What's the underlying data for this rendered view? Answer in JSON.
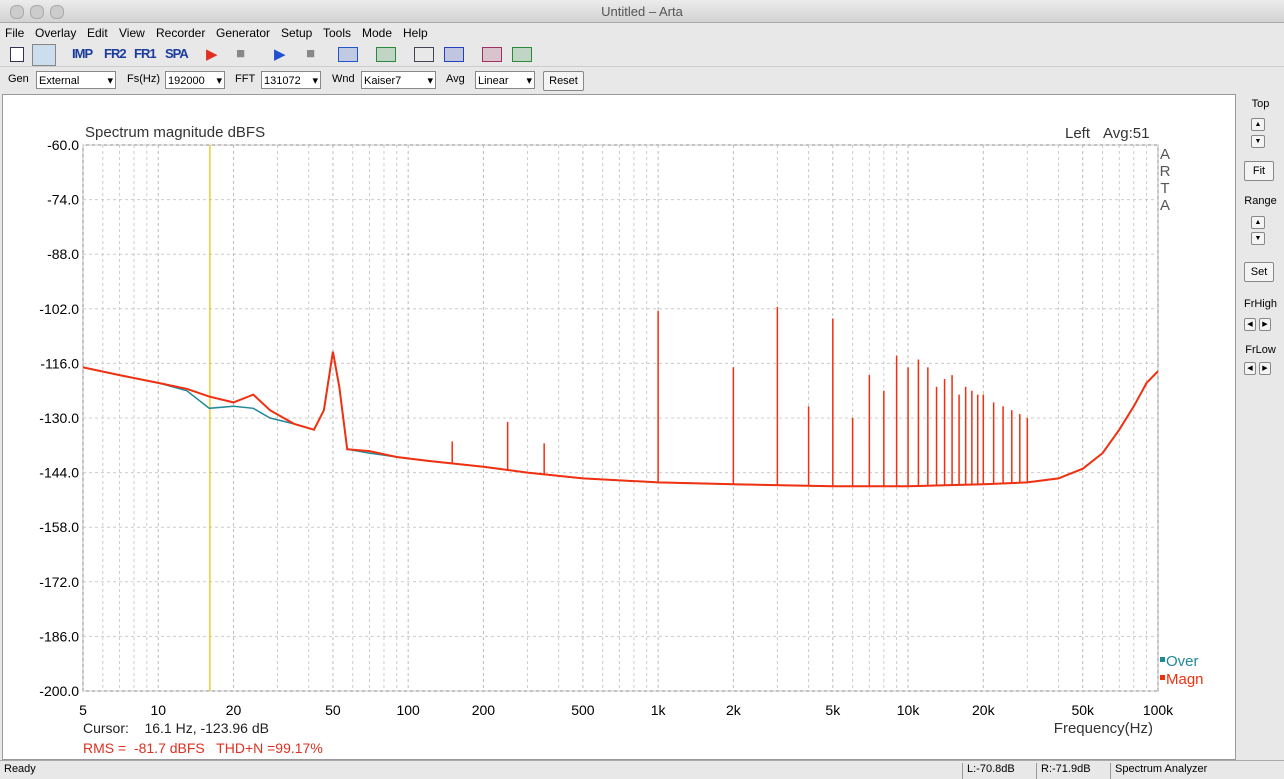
{
  "window": {
    "title": "Untitled – Arta"
  },
  "menu": [
    "File",
    "Overlay",
    "Edit",
    "View",
    "Recorder",
    "Generator",
    "Setup",
    "Tools",
    "Mode",
    "Help"
  ],
  "toolbar": [
    "IMP",
    "FR2",
    "FR1",
    "SPA"
  ],
  "controls": [
    {
      "label": "Gen",
      "value": "External"
    },
    {
      "label": "Fs(Hz)",
      "value": "192000"
    },
    {
      "label": "FFT",
      "value": "131072"
    },
    {
      "label": "Wnd",
      "value": "Kaiser7"
    },
    {
      "label": "Avg",
      "value": "Linear"
    }
  ],
  "reset": "Reset",
  "right_panel": {
    "top": "Top",
    "fit": "Fit",
    "range": "Range",
    "set": "Set",
    "frhigh": "FrHigh",
    "frlow": "FrLow"
  },
  "status": [
    "Ready",
    "L:-70.8dB",
    "R:-71.9dB",
    "Spectrum Analyzer"
  ],
  "chart": {
    "type": "line",
    "title": "Spectrum magnitude dBFS",
    "channel": "Left",
    "avg": "Avg:51",
    "logo": [
      "A",
      "R",
      "T",
      "A"
    ],
    "xlabel": "Frequency(Hz)",
    "cursor": "Cursor:    16.1 Hz, -123.96 dB",
    "cursor_x": 16.1,
    "cursor_color": "#e8c000",
    "summary": "RMS =  -81.7 dBFS   THD+N =99.17%",
    "x_log": true,
    "grid": true,
    "xlim": [
      5,
      100000
    ],
    "ylim": [
      -200,
      -60
    ],
    "xticks": [
      5,
      10,
      20,
      50,
      100,
      200,
      500,
      {
        "value": 1000,
        "label": "1k"
      },
      {
        "value": 2000,
        "label": "2k"
      },
      {
        "value": 5000,
        "label": "5k"
      },
      {
        "value": 10000,
        "label": "10k"
      },
      {
        "value": 20000,
        "label": "20k"
      },
      {
        "value": 50000,
        "label": "50k"
      },
      {
        "value": 100000,
        "label": "100k"
      }
    ],
    "x_minor_grid": [
      6,
      7,
      8,
      9,
      30,
      40,
      60,
      70,
      80,
      90,
      300,
      400,
      600,
      700,
      800,
      900,
      3000,
      4000,
      6000,
      7000,
      8000,
      9000,
      30000,
      40000,
      60000,
      70000,
      80000,
      90000
    ],
    "yticks": [
      {
        "value": -60,
        "label": "-60.0"
      },
      {
        "value": -74,
        "label": "-74.0"
      },
      {
        "value": -88,
        "label": "-88.0"
      },
      {
        "value": -102,
        "label": "-102.0"
      },
      {
        "value": -116,
        "label": "-116.0"
      },
      {
        "value": -130,
        "label": "-130.0"
      },
      {
        "value": -144,
        "label": "-144.0"
      },
      {
        "value": -158,
        "label": "-158.0"
      },
      {
        "value": -172,
        "label": "-172.0"
      },
      {
        "value": -186,
        "label": "-186.0"
      },
      {
        "value": -200,
        "label": "-200.0"
      }
    ],
    "x": [
      5,
      7,
      10,
      13,
      16,
      20,
      24,
      28,
      35,
      42,
      46,
      50,
      53,
      57,
      70,
      90,
      120,
      200,
      300,
      500,
      1000,
      2000,
      5000,
      10000,
      20000,
      30000,
      40000,
      50000,
      60000,
      70000,
      80000,
      90000,
      100000
    ],
    "series": [
      {
        "name": "Over",
        "color": "#21899a",
        "values": [
          -117,
          -119,
          -121,
          -123,
          -127.5,
          -127,
          -127.5,
          -130,
          -131.5,
          -133,
          -128,
          -113,
          -122,
          -138,
          -139,
          -140,
          -141,
          -142.5,
          -144,
          -145.5,
          -146.5,
          -147,
          -147.5,
          -147.5,
          -147,
          -146.5,
          -145.5,
          -143,
          -139,
          -133,
          -127,
          -121,
          -118
        ]
      },
      {
        "name": "Magn",
        "color": "#f03010",
        "values": [
          -117,
          -119,
          -121,
          -122.5,
          -124.5,
          -126,
          -124,
          -128,
          -131.5,
          -133,
          -128,
          -113,
          -122,
          -138,
          -138.5,
          -140,
          -141,
          -142.5,
          -144,
          -145.5,
          -146.5,
          -147,
          -147.5,
          -147.5,
          -147,
          -146.5,
          -145.5,
          -143,
          -139,
          -133,
          -127,
          -121,
          -118
        ]
      }
    ],
    "spikes": {
      "x": [
        150,
        250,
        350,
        1000,
        2000,
        3000,
        4000,
        5000,
        6000,
        7000,
        8000,
        9000,
        10000,
        11000,
        12000,
        13000,
        14000,
        15000,
        16000,
        17000,
        18000,
        19000,
        20000,
        22000,
        24000,
        26000,
        28000,
        30000
      ],
      "values": [
        -136,
        -131,
        -136.5,
        -102.5,
        -117,
        -101.5,
        -127,
        -104.5,
        -130,
        -119,
        -123,
        -114,
        -117,
        -115,
        -117,
        -122,
        -120,
        -119,
        -124,
        -122,
        -123,
        -124,
        -124,
        -126,
        -127,
        -128,
        -129,
        -130
      ]
    }
  }
}
